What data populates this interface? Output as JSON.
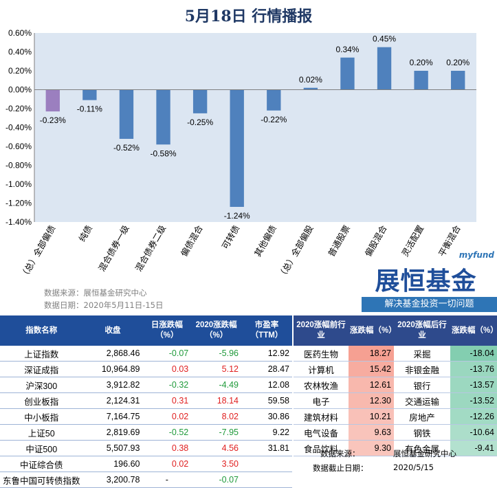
{
  "title": "5月18日  行情播报",
  "chart_data": {
    "type": "bar",
    "categories": [
      "（总）全部偏债",
      "纯债",
      "混合债券一级",
      "混合债券二级",
      "偏债混合",
      "可转债",
      "其他偏债",
      "（总）全部偏股",
      "普通股票",
      "偏股混合",
      "灵活配置",
      "平衡混合"
    ],
    "values": [
      -0.23,
      -0.11,
      -0.52,
      -0.58,
      -0.25,
      -1.24,
      -0.22,
      0.02,
      0.34,
      0.45,
      0.2,
      0.2
    ],
    "data_labels": [
      "-0.23%",
      "-0.11%",
      "-0.52%",
      "-0.58%",
      "-0.25%",
      "-1.24%",
      "-0.22%",
      "0.02%",
      "0.34%",
      "0.45%",
      "0.20%",
      "0.20%"
    ],
    "ylim": [
      -1.4,
      0.6
    ],
    "yticks": [
      "0.60%",
      "0.40%",
      "0.20%",
      "0.00%",
      "-0.20%",
      "-0.40%",
      "-0.60%",
      "-0.80%",
      "-1.00%",
      "-1.20%",
      "-1.40%"
    ],
    "ytick_values": [
      0.6,
      0.4,
      0.2,
      0.0,
      -0.2,
      -0.4,
      -0.6,
      -0.8,
      -1.0,
      -1.2,
      -1.4
    ],
    "colors": {
      "bar": "#4f81bd",
      "highlight": "#9b7fbf",
      "plot_bg": "#dce6f2"
    },
    "highlight_index": 0,
    "grid": false
  },
  "source": {
    "line1": "数据来源：展恒基金研究中心",
    "line2": "数据日期：2020年5月11日-15日"
  },
  "brand": {
    "en": "myfund",
    "cn": "展恒基金",
    "slogan": "解决基金投资一切问题"
  },
  "left_table": {
    "headers": [
      "指数名称",
      "收盘",
      "日涨跌幅（%）",
      "2020涨跌幅（%）",
      "市盈率（TTM）"
    ],
    "rows": [
      {
        "name": "上证指数",
        "close": "2,868.46",
        "day": "-0.07",
        "ytd": "-5.96",
        "pe": "12.92"
      },
      {
        "name": "深证成指",
        "close": "10,964.89",
        "day": "0.03",
        "ytd": "5.12",
        "pe": "28.47"
      },
      {
        "name": "沪深300",
        "close": "3,912.82",
        "day": "-0.32",
        "ytd": "-4.49",
        "pe": "12.08"
      },
      {
        "name": "创业板指",
        "close": "2,124.31",
        "day": "0.31",
        "ytd": "18.14",
        "pe": "59.58"
      },
      {
        "name": "中小板指",
        "close": "7,164.75",
        "day": "0.02",
        "ytd": "8.02",
        "pe": "30.86"
      },
      {
        "name": "上证50",
        "close": "2,819.69",
        "day": "-0.52",
        "ytd": "-7.95",
        "pe": "9.22"
      },
      {
        "name": "中证500",
        "close": "5,507.93",
        "day": "0.38",
        "ytd": "4.56",
        "pe": "31.81"
      },
      {
        "name": "中证综合债",
        "close": "196.60",
        "day": "0.02",
        "ytd": "3.50",
        "pe": ""
      },
      {
        "name": "东鲁中国可转债指数",
        "close": "3,200.78",
        "day": "-",
        "ytd": "-0.07",
        "pe": ""
      }
    ]
  },
  "right_table": {
    "headers": [
      "2020涨幅前行业",
      "涨跌幅（%）",
      "2020涨幅后行业",
      "涨跌幅（%）"
    ],
    "rows": [
      {
        "top": "医药生物",
        "top_val": "18.27",
        "bottom": "采掘",
        "bottom_val": "-18.04"
      },
      {
        "top": "计算机",
        "top_val": "15.42",
        "bottom": "非银金融",
        "bottom_val": "-13.76"
      },
      {
        "top": "农林牧渔",
        "top_val": "12.61",
        "bottom": "银行",
        "bottom_val": "-13.57"
      },
      {
        "top": "电子",
        "top_val": "12.30",
        "bottom": "交通运输",
        "bottom_val": "-13.52"
      },
      {
        "top": "建筑材料",
        "top_val": "10.21",
        "bottom": "房地产",
        "bottom_val": "-12.26"
      },
      {
        "top": "电气设备",
        "top_val": "9.63",
        "bottom": "钢铁",
        "bottom_val": "-10.64"
      },
      {
        "top": "食品饮料",
        "top_val": "9.30",
        "bottom": "有色金属",
        "bottom_val": "-9.41"
      }
    ],
    "footer": [
      {
        "label": "数据来源：",
        "value": "展恒基金研究中心"
      },
      {
        "label": "数据截止日期：",
        "value": "2020/5/15"
      }
    ]
  }
}
